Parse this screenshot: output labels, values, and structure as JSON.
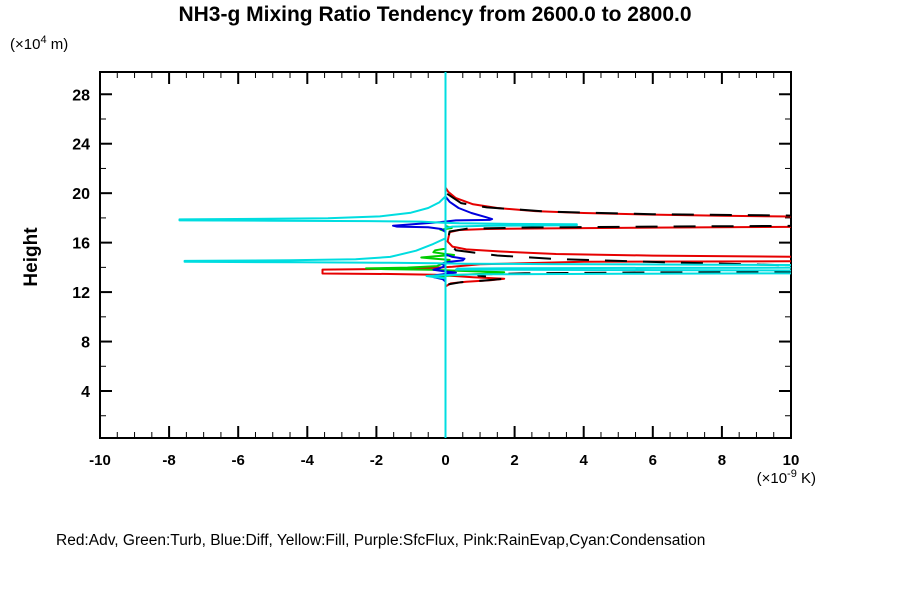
{
  "title": "NH3-g Mixing Ratio Tendency from 2600.0 to 2800.0",
  "y_axis_unit": {
    "prefix": "(×10",
    "exponent": "4",
    "suffix": " m)"
  },
  "x_axis_unit": {
    "prefix": "(×10",
    "exponent": "-9",
    "suffix": " K)"
  },
  "y_axis_title": "Height",
  "legend_text": "Red:Adv, Green:Turb, Blue:Diff, Yellow:Fill, Purple:SfcFlux, Pink:RainEvap,Cyan:Condensation",
  "chart_data": {
    "type": "line",
    "title": "NH3-g Mixing Ratio Tendency from 2600.0 to 2800.0",
    "xlabel": "",
    "ylabel": "Height",
    "x_unit": "x10^-9 K",
    "y_unit": "x10^4 m",
    "xlim": [
      -10,
      10
    ],
    "ylim": [
      0.2,
      29.8
    ],
    "x_major_ticks": [
      -10,
      -8,
      -6,
      -4,
      -2,
      0,
      2,
      4,
      6,
      8,
      10
    ],
    "x_minor_step": 0.5,
    "y_major_ticks": [
      4,
      8,
      12,
      16,
      20,
      24,
      28
    ],
    "y_minor_step": 2,
    "grid": false,
    "legend_position": "bottom",
    "axis_color": "#000000",
    "note": "Profiles of tendency (x) vs height (y, 10^4 m). Lines exceeding +10 are clipped at the right edge. Black dashed net line is visible but absent from legend. Yellow/Purple/Pink series are zero everywhere (hidden under the cyan zero line).",
    "series": [
      {
        "name": "Fill",
        "color_name": "Yellow",
        "color": "#f0e000",
        "dash": null,
        "width": 2,
        "segments": [
          [
            [
              0,
              29.8
            ],
            [
              0,
              0.2
            ]
          ]
        ]
      },
      {
        "name": "SfcFlux",
        "color_name": "Purple",
        "color": "#a000c8",
        "dash": null,
        "width": 2,
        "segments": [
          [
            [
              0,
              29.8
            ],
            [
              0,
              0.2
            ]
          ]
        ]
      },
      {
        "name": "RainEvap",
        "color_name": "Pink",
        "color": "#ff78b4",
        "dash": null,
        "width": 2,
        "segments": [
          [
            [
              0,
              29.8
            ],
            [
              0,
              0.2
            ]
          ]
        ]
      },
      {
        "name": "Adv",
        "color_name": "Red",
        "color": "#e60000",
        "dash": null,
        "width": 2,
        "segments": [
          [
            [
              0,
              20.45
            ],
            [
              0.08,
              20.1
            ],
            [
              0.3,
              19.6
            ],
            [
              0.8,
              19.1
            ],
            [
              1.5,
              18.8
            ],
            [
              2.6,
              18.55
            ],
            [
              4,
              18.4
            ],
            [
              6,
              18.27
            ],
            [
              8,
              18.17
            ],
            [
              10.6,
              18.1
            ],
            [
              10.6,
              17.28
            ],
            [
              6,
              17.22
            ],
            [
              3,
              17.15
            ],
            [
              1.2,
              17.1
            ],
            [
              0.4,
              17.02
            ],
            [
              0.12,
              16.85
            ],
            [
              0.06,
              16.1
            ],
            [
              0.2,
              15.68
            ],
            [
              0.6,
              15.45
            ],
            [
              1.6,
              15.28
            ],
            [
              3.2,
              15.08
            ],
            [
              6,
              14.95
            ],
            [
              10.6,
              14.85
            ],
            [
              10.6,
              14.5
            ],
            [
              4,
              14.45
            ],
            [
              1,
              14.25
            ],
            [
              0.2,
              14.05
            ],
            [
              -0.6,
              13.92
            ],
            [
              -2.2,
              13.86
            ],
            [
              -3.56,
              13.82
            ],
            [
              -3.56,
              13.5
            ],
            [
              -1.6,
              13.46
            ],
            [
              -0.3,
              13.4
            ],
            [
              0.15,
              13.32
            ],
            [
              0.8,
              13.2
            ],
            [
              1.7,
              13.08
            ],
            [
              1.3,
              12.95
            ],
            [
              0.6,
              12.84
            ],
            [
              0.15,
              12.7
            ],
            [
              0,
              12.45
            ]
          ]
        ]
      },
      {
        "name": "Net (black, dashed, not in legend)",
        "color_name": "Black",
        "color": "#000000",
        "dash": "22 16",
        "width": 2,
        "segments": [
          [
            [
              0.05,
              19.95
            ],
            [
              0.45,
              19.2
            ],
            [
              1.2,
              18.85
            ],
            [
              3,
              18.5
            ],
            [
              6,
              18.3
            ],
            [
              10.6,
              18.17
            ],
            [
              10.6,
              17.36
            ],
            [
              6,
              17.3
            ],
            [
              2.2,
              17.22
            ],
            [
              0.6,
              17.12
            ],
            [
              0.12,
              16.9
            ],
            [
              0.06,
              16.1
            ],
            [
              0.3,
              15.38
            ],
            [
              1.5,
              14.96
            ],
            [
              3.2,
              14.68
            ],
            [
              6.5,
              14.4
            ],
            [
              10.6,
              14.12
            ],
            [
              10.6,
              13.64
            ],
            [
              5,
              13.58
            ],
            [
              2.3,
              13.52
            ],
            [
              1.1,
              13.44
            ],
            [
              0.95,
              13.34
            ],
            [
              1.3,
              13.2
            ],
            [
              1.62,
              13.06
            ],
            [
              1.05,
              12.92
            ],
            [
              0.45,
              12.8
            ],
            [
              0.08,
              12.62
            ]
          ]
        ]
      },
      {
        "name": "Turb",
        "color_name": "Green",
        "color": "#00cc00",
        "dash": null,
        "width": 2,
        "segments": [
          [
            [
              0,
              17.35
            ],
            [
              0.18,
              17.18
            ],
            [
              -0.15,
              17.05
            ],
            [
              0,
              16.92
            ],
            [
              0,
              15.52
            ],
            [
              -0.3,
              15.38
            ],
            [
              -0.35,
              15.22
            ],
            [
              -0.05,
              15.1
            ],
            [
              0.25,
              15.0
            ],
            [
              -0.3,
              14.9
            ],
            [
              -0.7,
              14.8
            ],
            [
              -0.3,
              14.7
            ],
            [
              0.12,
              14.6
            ],
            [
              0,
              14.42
            ],
            [
              -0.25,
              14.1
            ],
            [
              -1.1,
              13.98
            ],
            [
              -2.3,
              13.92
            ],
            [
              -1.75,
              13.86
            ],
            [
              -0.4,
              13.8
            ],
            [
              0.35,
              13.73
            ],
            [
              1.1,
              13.66
            ],
            [
              1.7,
              13.6
            ],
            [
              1.55,
              13.52
            ],
            [
              0.8,
              13.45
            ],
            [
              0.2,
              13.36
            ],
            [
              -0.2,
              13.26
            ],
            [
              0,
              13.12
            ]
          ]
        ]
      },
      {
        "name": "Diff",
        "color_name": "Blue",
        "color": "#0000dd",
        "dash": null,
        "width": 2,
        "segments": [
          [
            [
              0,
              19.72
            ],
            [
              0.12,
              19.3
            ],
            [
              0.38,
              18.8
            ],
            [
              0.75,
              18.4
            ],
            [
              1.15,
              18.08
            ],
            [
              1.35,
              17.9
            ],
            [
              1.28,
              17.84
            ],
            [
              0.3,
              17.8
            ],
            [
              -0.15,
              17.66
            ],
            [
              -0.9,
              17.5
            ],
            [
              -1.52,
              17.37
            ],
            [
              -1.4,
              17.3
            ],
            [
              -0.5,
              17.24
            ],
            [
              -0.12,
              17.1
            ],
            [
              0,
              16.85
            ],
            [
              0,
              15.05
            ],
            [
              0.18,
              14.86
            ],
            [
              0.55,
              14.7
            ],
            [
              0.5,
              14.56
            ],
            [
              0.12,
              14.46
            ],
            [
              -0.12,
              14.3
            ],
            [
              0,
              14.12
            ],
            [
              -0.15,
              13.95
            ],
            [
              -0.35,
              13.8
            ],
            [
              -0.05,
              13.68
            ],
            [
              0.3,
              13.58
            ],
            [
              0.05,
              13.48
            ],
            [
              -0.3,
              13.36
            ],
            [
              -0.33,
              13.2
            ],
            [
              -0.08,
              13.05
            ],
            [
              0,
              12.85
            ]
          ]
        ]
      },
      {
        "name": "Condensation",
        "color_name": "Cyan",
        "color": "#00dde0",
        "dash": null,
        "width": 2,
        "segments": [
          [
            [
              0,
              29.8
            ],
            [
              0,
              0.2
            ]
          ],
          [
            [
              0,
              19.75
            ],
            [
              -0.18,
              19.25
            ],
            [
              -0.5,
              18.8
            ],
            [
              -1.0,
              18.42
            ],
            [
              -1.9,
              18.12
            ],
            [
              -3.4,
              17.98
            ],
            [
              -5.5,
              17.92
            ],
            [
              -7.7,
              17.88
            ],
            [
              -7.7,
              17.8
            ],
            [
              -5,
              17.77
            ],
            [
              -2.2,
              17.74
            ],
            [
              -0.7,
              17.7
            ],
            [
              -0.15,
              17.62
            ],
            [
              0.4,
              17.56
            ],
            [
              1.6,
              17.52
            ],
            [
              3.8,
              17.49
            ],
            [
              3.8,
              17.41
            ],
            [
              1.2,
              17.37
            ],
            [
              0.2,
              17.3
            ],
            [
              0,
              17.18
            ],
            [
              0,
              16.35
            ],
            [
              -0.35,
              15.9
            ],
            [
              -0.85,
              15.35
            ],
            [
              -1.6,
              14.85
            ],
            [
              -2.6,
              14.65
            ],
            [
              -4.5,
              14.57
            ],
            [
              -7.55,
              14.52
            ],
            [
              -7.55,
              14.45
            ],
            [
              -4.2,
              14.41
            ],
            [
              -1.6,
              14.37
            ],
            [
              -0.3,
              14.33
            ],
            [
              0.6,
              14.3
            ],
            [
              3,
              14.26
            ],
            [
              7,
              14.22
            ],
            [
              10.6,
              14.18
            ],
            [
              10.6,
              13.98
            ],
            [
              6,
              13.96
            ],
            [
              2,
              13.93
            ],
            [
              0.35,
              13.9
            ],
            [
              0.3,
              13.82
            ],
            [
              2,
              13.8
            ],
            [
              6,
              13.78
            ],
            [
              10.6,
              13.75
            ],
            [
              10.6,
              13.52
            ],
            [
              5,
              13.48
            ],
            [
              1.2,
              13.44
            ],
            [
              0.15,
              13.39
            ],
            [
              -0.55,
              13.3
            ],
            [
              -0.3,
              13.2
            ],
            [
              0,
              13.12
            ]
          ]
        ]
      }
    ]
  }
}
